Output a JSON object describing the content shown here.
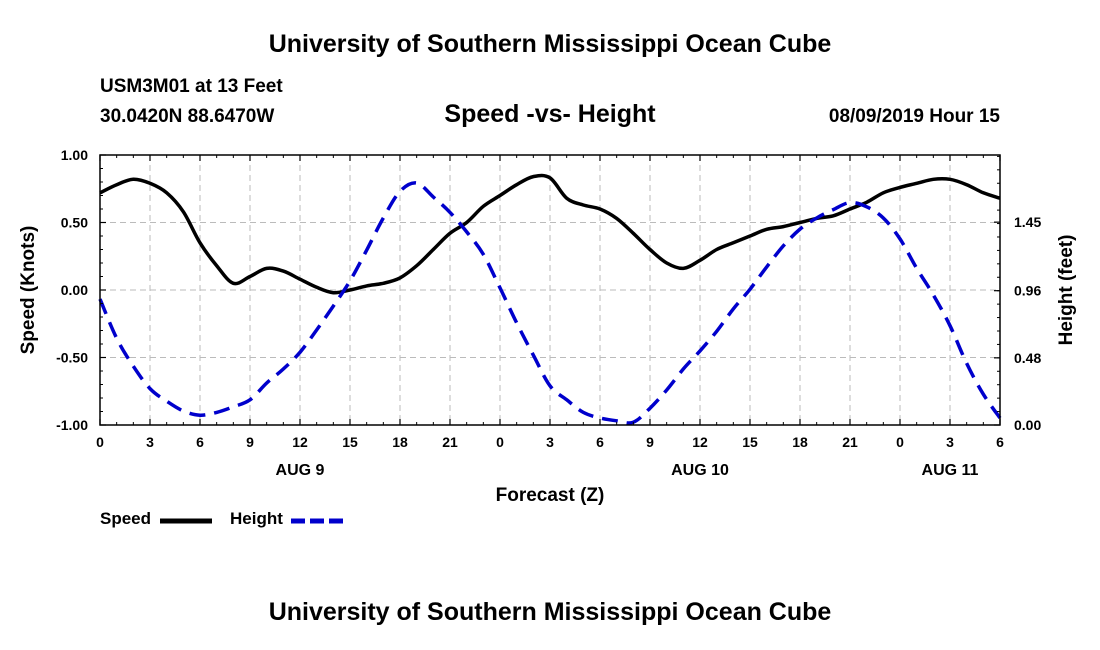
{
  "header": {
    "title": "University of Southern Mississippi Ocean Cube",
    "station": "USM3M01 at 13 Feet",
    "coords": "30.0420N 88.6470W",
    "subtitle": "Speed -vs- Height",
    "datetime": "08/09/2019 Hour 15"
  },
  "footer": {
    "title": "University of Southern Mississippi Ocean Cube"
  },
  "legend": {
    "speed_label": "Speed",
    "height_label": "Height"
  },
  "colors": {
    "speed": "#000000",
    "height": "#0000cc",
    "grid": "#bbbbbb"
  },
  "chart_data": {
    "type": "line",
    "title": "Speed -vs- Height",
    "xlabel": "Forecast (Z)",
    "ylabel": "Speed (Knots)",
    "y2label": "Height (feet)",
    "xlim": [
      0,
      54
    ],
    "ylim": [
      -1.0,
      1.0
    ],
    "y2lim": [
      0.0,
      1.93
    ],
    "x_ticks": [
      0,
      3,
      6,
      9,
      12,
      15,
      18,
      21,
      24,
      27,
      30,
      33,
      36,
      39,
      42,
      45,
      48,
      51,
      54
    ],
    "x_tick_labels": [
      "0",
      "3",
      "6",
      "9",
      "12",
      "15",
      "18",
      "21",
      "0",
      "3",
      "6",
      "9",
      "12",
      "15",
      "18",
      "21",
      "0",
      "3",
      "6"
    ],
    "y_ticks": [
      -1.0,
      -0.5,
      0.0,
      0.5,
      1.0
    ],
    "y_tick_labels": [
      "-1.00",
      "-0.50",
      "0.00",
      "0.50",
      "1.00"
    ],
    "y2_ticks": [
      0.0,
      0.48,
      0.96,
      1.45
    ],
    "y2_tick_labels": [
      "0.00",
      "0.48",
      "0.96",
      "1.45"
    ],
    "day_labels": [
      {
        "x": 12,
        "label": "AUG 9"
      },
      {
        "x": 36,
        "label": "AUG 10"
      },
      {
        "x": 51,
        "label": "AUG 11"
      }
    ],
    "grid": true,
    "series": [
      {
        "name": "Speed",
        "axis": "left",
        "x": [
          0,
          1,
          2,
          3,
          4,
          5,
          6,
          7,
          8,
          9,
          10,
          11,
          12,
          13,
          14,
          15,
          16,
          17,
          18,
          19,
          20,
          21,
          22,
          23,
          24,
          25,
          26,
          27,
          28,
          29,
          30,
          31,
          32,
          33,
          34,
          35,
          36,
          37,
          38,
          39,
          40,
          41,
          42,
          43,
          44,
          45,
          46,
          47,
          48,
          49,
          50,
          51,
          52,
          53,
          54
        ],
        "y": [
          0.72,
          0.78,
          0.82,
          0.79,
          0.72,
          0.58,
          0.35,
          0.18,
          0.05,
          0.1,
          0.16,
          0.14,
          0.08,
          0.02,
          -0.02,
          0.0,
          0.03,
          0.05,
          0.09,
          0.18,
          0.3,
          0.42,
          0.5,
          0.62,
          0.7,
          0.78,
          0.84,
          0.83,
          0.68,
          0.63,
          0.6,
          0.53,
          0.42,
          0.3,
          0.2,
          0.16,
          0.22,
          0.3,
          0.35,
          0.4,
          0.45,
          0.47,
          0.5,
          0.53,
          0.55,
          0.6,
          0.65,
          0.72,
          0.76,
          0.79,
          0.82,
          0.82,
          0.78,
          0.72,
          0.68
        ]
      },
      {
        "name": "Height",
        "axis": "right",
        "x": [
          0,
          1,
          2,
          3,
          4,
          5,
          6,
          7,
          8,
          9,
          10,
          11,
          12,
          13,
          14,
          15,
          16,
          17,
          18,
          19,
          20,
          21,
          22,
          23,
          24,
          25,
          26,
          27,
          28,
          29,
          30,
          31,
          32,
          33,
          34,
          35,
          36,
          37,
          38,
          39,
          40,
          41,
          42,
          43,
          44,
          45,
          46,
          47,
          48,
          49,
          50,
          51,
          52,
          53,
          54
        ],
        "y": [
          0.9,
          0.62,
          0.42,
          0.26,
          0.17,
          0.1,
          0.07,
          0.09,
          0.13,
          0.18,
          0.3,
          0.4,
          0.52,
          0.68,
          0.85,
          1.03,
          1.25,
          1.48,
          1.67,
          1.73,
          1.63,
          1.52,
          1.38,
          1.22,
          0.98,
          0.73,
          0.5,
          0.28,
          0.18,
          0.09,
          0.05,
          0.03,
          0.02,
          0.12,
          0.25,
          0.4,
          0.53,
          0.67,
          0.83,
          0.97,
          1.13,
          1.28,
          1.4,
          1.48,
          1.54,
          1.59,
          1.56,
          1.48,
          1.33,
          1.12,
          0.93,
          0.71,
          0.44,
          0.22,
          0.05
        ]
      }
    ]
  }
}
